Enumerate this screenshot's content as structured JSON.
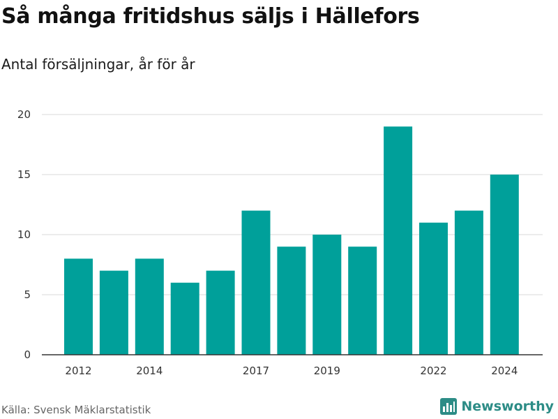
{
  "title": "Så många fritidshus säljs i Hällefors",
  "subtitle": "Antal försäljningar, år för år",
  "source": "Källa: Svensk Mäklarstatistik",
  "brand": {
    "name": "Newsworthy",
    "icon": "bar-chart-logo-icon",
    "color": "#2c8c86"
  },
  "colors": {
    "bar": "#00a09a",
    "grid": "#d9d9d9",
    "axis": "#333333"
  },
  "chart_data": {
    "type": "bar",
    "categories": [
      2012,
      2013,
      2014,
      2015,
      2016,
      2017,
      2018,
      2019,
      2020,
      2021,
      2022,
      2023,
      2024
    ],
    "values": [
      8,
      7,
      8,
      6,
      7,
      12,
      9,
      10,
      9,
      19,
      11,
      12,
      15
    ],
    "x_tick_labels": [
      "2012",
      "2014",
      "2017",
      "2019",
      "2022",
      "2024"
    ],
    "y_ticks": [
      0,
      5,
      10,
      15,
      20
    ],
    "ylim": [
      0,
      20
    ],
    "grid": true,
    "xlabel": "",
    "ylabel": ""
  }
}
